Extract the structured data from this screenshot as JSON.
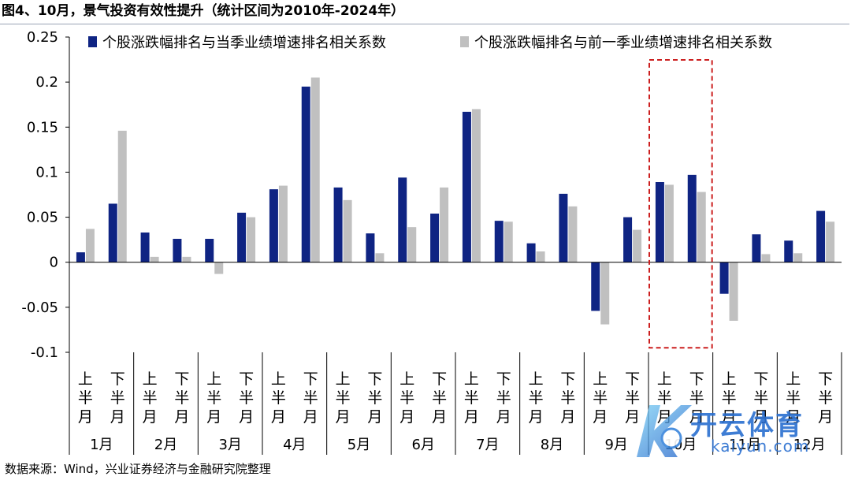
{
  "title": "图4、10月，景气投资有效性提升（统计区间为2010年-2024年）",
  "source": "数据来源：Wind，兴业证券经济与金融研究院整理",
  "watermark": {
    "brand": "开云体育",
    "site": "kaiyun.com",
    "logo_icon": "k-logo-icon"
  },
  "colors": {
    "series1": "#0f2483",
    "series2": "#c0c0c0",
    "highlight": "#cc1f1f",
    "axis": "#000000"
  },
  "chart_data": {
    "type": "bar",
    "title": "",
    "xlabel": "",
    "ylabel": "",
    "ylim": [
      -0.1,
      0.25
    ],
    "yticks": [
      "0.25",
      "0.2",
      "0.15",
      "0.1",
      "0.05",
      "0",
      "-0.05",
      "-0.1"
    ],
    "ytick_values": [
      0.25,
      0.2,
      0.15,
      0.1,
      0.05,
      0,
      -0.05,
      -0.1
    ],
    "grid": false,
    "legend_position": "top",
    "months": [
      "1月",
      "2月",
      "3月",
      "4月",
      "5月",
      "6月",
      "7月",
      "8月",
      "9月",
      "10月",
      "11月",
      "12月"
    ],
    "halves": [
      "上半月",
      "下半月"
    ],
    "categories": [
      "1月上半月",
      "1月下半月",
      "2月上半月",
      "2月下半月",
      "3月上半月",
      "3月下半月",
      "4月上半月",
      "4月下半月",
      "5月上半月",
      "5月下半月",
      "6月上半月",
      "6月下半月",
      "7月上半月",
      "7月下半月",
      "8月上半月",
      "8月下半月",
      "9月上半月",
      "9月下半月",
      "10月上半月",
      "10月下半月",
      "11月上半月",
      "11月下半月",
      "12月上半月",
      "12月下半月"
    ],
    "series": [
      {
        "name": "个股涨跌幅排名与当季业绩增速排名相关系数",
        "values": [
          0.011,
          0.065,
          0.033,
          0.026,
          0.026,
          0.055,
          0.081,
          0.195,
          0.083,
          0.032,
          0.094,
          0.054,
          0.167,
          0.046,
          0.021,
          0.076,
          -0.054,
          0.05,
          0.089,
          0.097,
          -0.035,
          0.031,
          0.024,
          0.057
        ]
      },
      {
        "name": "个股涨跌幅排名与前一季业绩增速排名相关系数",
        "values": [
          0.037,
          0.146,
          0.006,
          0.006,
          -0.013,
          0.05,
          0.085,
          0.205,
          0.069,
          0.01,
          0.039,
          0.083,
          0.17,
          0.045,
          0.012,
          0.062,
          -0.069,
          0.036,
          0.086,
          0.078,
          -0.065,
          0.009,
          0.01,
          0.045
        ]
      }
    ],
    "highlight_month": "10月"
  }
}
